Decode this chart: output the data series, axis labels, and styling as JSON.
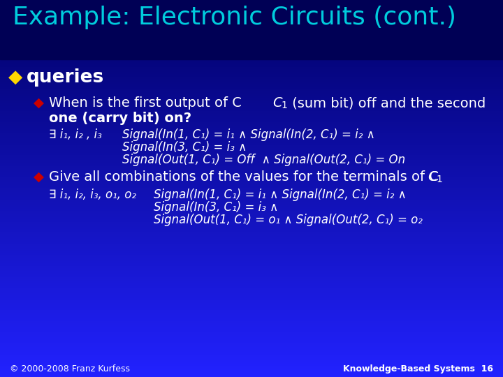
{
  "title": "Example: Electronic Circuits (cont.)",
  "title_color": "#00CCDD",
  "bg_color_top": "#000066",
  "bg_color_bottom": "#2222FF",
  "text_color": "#FFFFFF",
  "diamond": "◆",
  "bullet_color_l1": "#FFD700",
  "bullet_color_l2": "#CC0000",
  "footer_left": "© 2000-2008 Franz Kurfess",
  "footer_right": "Knowledge-Based Systems  16",
  "footer_color": "#FFFFFF"
}
